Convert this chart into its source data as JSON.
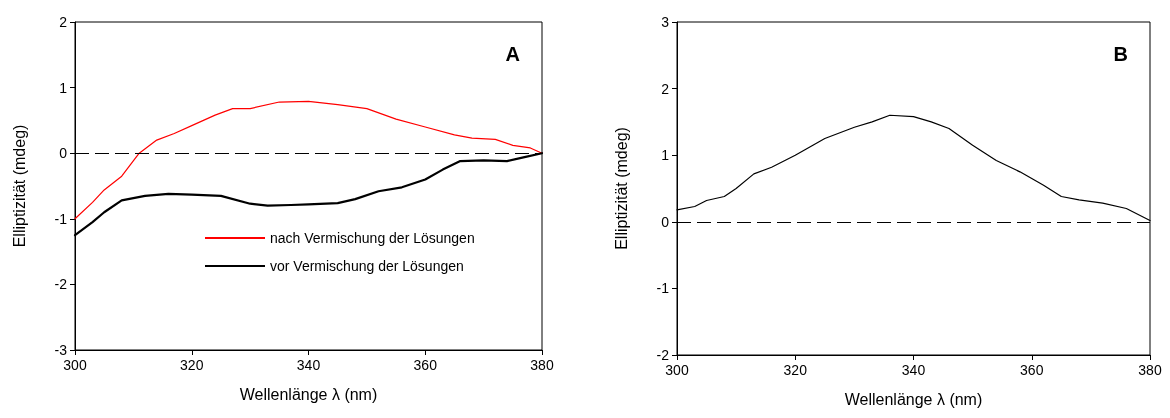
{
  "chart_data": [
    {
      "type": "line",
      "xlabel": "Wellenlänge λ (nm)",
      "ylabel": "Elliptizität (mdeg)",
      "annotations": [
        "A"
      ],
      "xlim": [
        300,
        380
      ],
      "xticks": [
        300,
        320,
        340,
        360,
        380
      ],
      "ylim": [
        -3,
        2
      ],
      "yticks": [
        -3,
        -2,
        -1,
        0,
        1,
        2
      ],
      "legend": "bottom",
      "grid": false,
      "marker": "none",
      "line_style": "solid",
      "ref_lines": [
        {
          "axis": "y",
          "value": 0,
          "label": null,
          "color": "#000000",
          "line_style": "dashed"
        }
      ],
      "series": [
        {
          "name": "nach Vermischung der Lösungen",
          "color": "#ff0000",
          "x": [
            300,
            303,
            305,
            308,
            311,
            314,
            317,
            320,
            324,
            327,
            330,
            335,
            340,
            345,
            350,
            355,
            360,
            365,
            368,
            372,
            375,
            378,
            380
          ],
          "values": [
            -1.0,
            -0.75,
            -0.56,
            -0.35,
            0.0,
            0.2,
            0.3,
            0.42,
            0.58,
            0.68,
            0.68,
            0.78,
            0.79,
            0.74,
            0.68,
            0.52,
            0.4,
            0.28,
            0.23,
            0.21,
            0.12,
            0.08,
            0.0
          ]
        },
        {
          "name": "vor Vermischung der Lösungen",
          "color": "#000000",
          "x": [
            300,
            303,
            305,
            308,
            312,
            316,
            320,
            325,
            330,
            333,
            337,
            340,
            345,
            348,
            352,
            356,
            360,
            363,
            366,
            370,
            374,
            377,
            380
          ],
          "values": [
            -1.25,
            -1.05,
            -0.9,
            -0.72,
            -0.65,
            -0.62,
            -0.63,
            -0.65,
            -0.77,
            -0.8,
            -0.79,
            -0.78,
            -0.76,
            -0.7,
            -0.58,
            -0.52,
            -0.4,
            -0.25,
            -0.12,
            -0.11,
            -0.12,
            -0.06,
            0.0
          ]
        }
      ]
    },
    {
      "type": "line",
      "xlabel": "Wellenlänge λ (nm)",
      "ylabel": "Elliptizität (mdeg)",
      "annotations": [
        "B"
      ],
      "xlim": [
        300,
        380
      ],
      "xticks": [
        300,
        320,
        340,
        360,
        380
      ],
      "ylim": [
        -2,
        3
      ],
      "yticks": [
        -2,
        -1,
        0,
        1,
        2,
        3
      ],
      "grid": false,
      "marker": "none",
      "line_style": "solid",
      "ref_lines": [
        {
          "axis": "y",
          "value": 0,
          "label": null,
          "color": "#000000",
          "line_style": "dashed"
        }
      ],
      "series": [
        {
          "color": "#000000",
          "x": [
            300,
            303,
            305,
            308,
            310,
            313,
            316,
            320,
            325,
            330,
            333,
            336,
            340,
            343,
            346,
            350,
            354,
            358,
            362,
            365,
            368,
            372,
            376,
            380
          ],
          "values": [
            0.18,
            0.23,
            0.32,
            0.38,
            0.5,
            0.72,
            0.82,
            1.0,
            1.25,
            1.42,
            1.5,
            1.6,
            1.58,
            1.5,
            1.4,
            1.15,
            0.92,
            0.75,
            0.55,
            0.38,
            0.33,
            0.28,
            0.2,
            0.02
          ]
        }
      ]
    }
  ]
}
